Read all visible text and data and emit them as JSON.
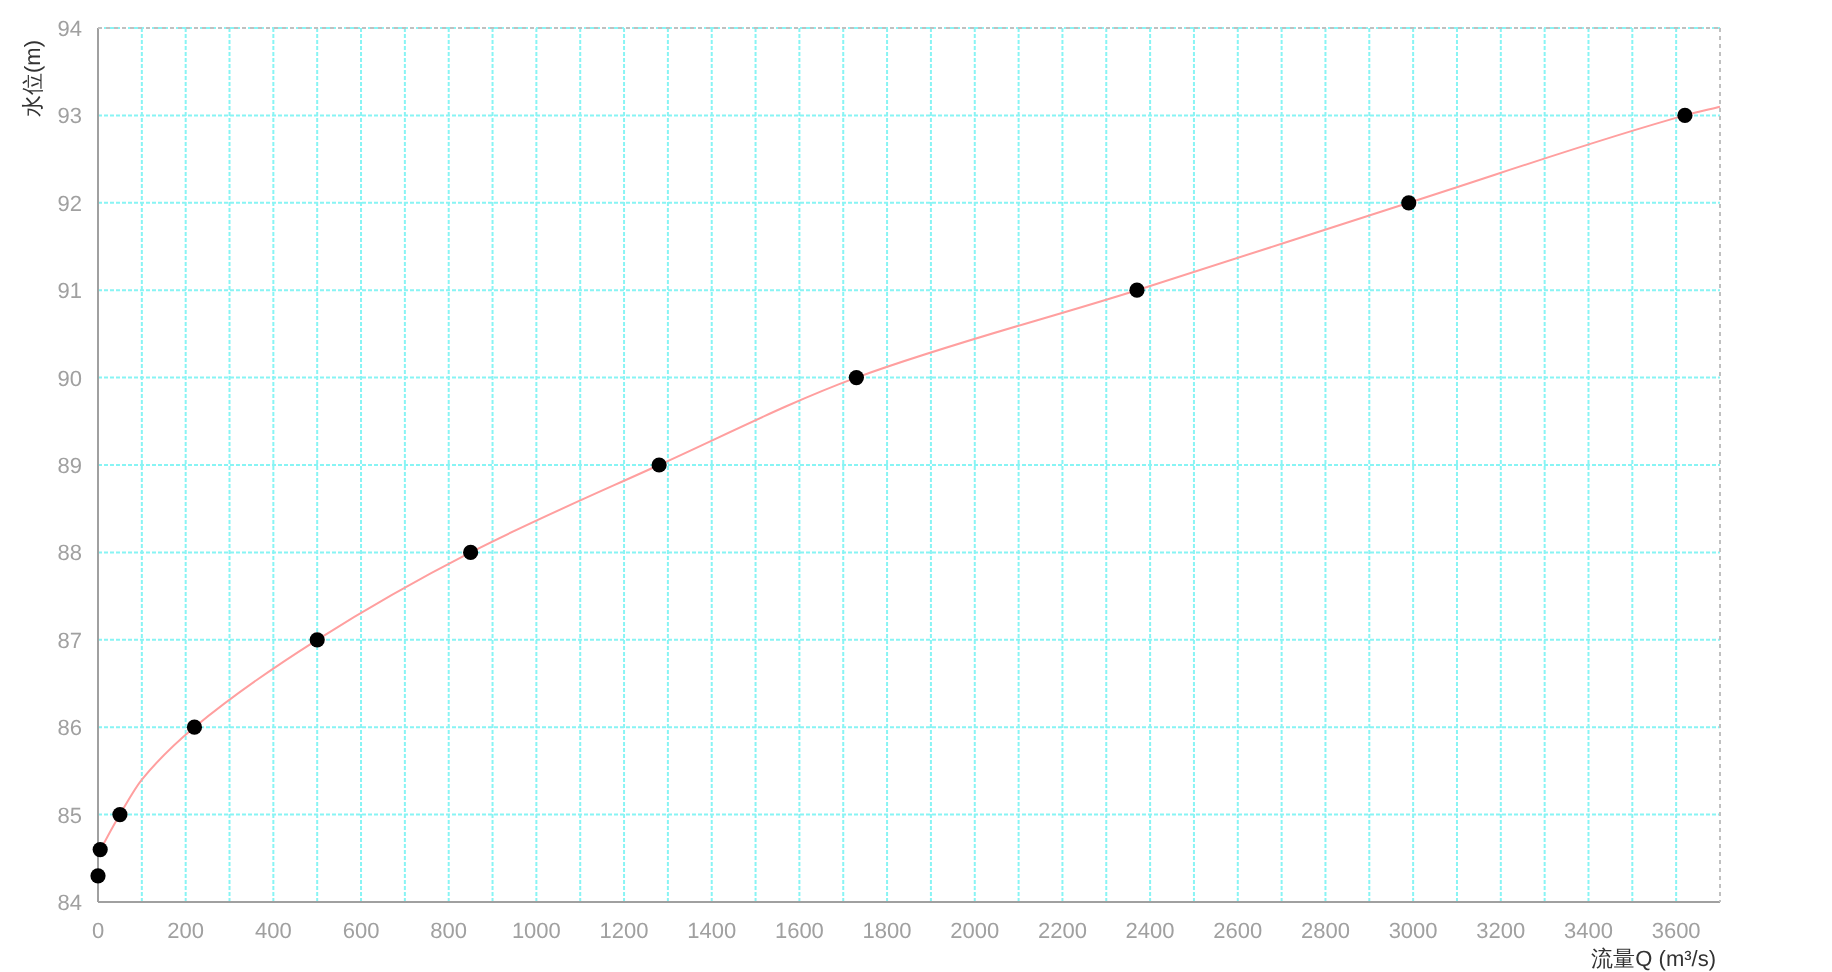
{
  "chart_data": {
    "type": "scatter",
    "xlabel": "流量Q (m³/s)",
    "ylabel": "水位(m)",
    "xlim": [
      0,
      3700
    ],
    "ylim": [
      84,
      94
    ],
    "xticks": [
      0,
      {
        "value": 100,
        "label": null
      },
      200,
      {
        "value": 300,
        "label": null
      },
      400,
      {
        "value": 500,
        "label": null
      },
      600,
      {
        "value": 700,
        "label": null
      },
      800,
      {
        "value": 900,
        "label": null
      },
      1000,
      {
        "value": 1100,
        "label": null
      },
      1200,
      {
        "value": 1300,
        "label": null
      },
      1400,
      {
        "value": 1500,
        "label": null
      },
      1600,
      {
        "value": 1700,
        "label": null
      },
      1800,
      {
        "value": 1900,
        "label": null
      },
      2000,
      {
        "value": 2100,
        "label": null
      },
      2200,
      {
        "value": 2300,
        "label": null
      },
      2400,
      {
        "value": 2500,
        "label": null
      },
      2600,
      {
        "value": 2700,
        "label": null
      },
      2800,
      {
        "value": 2900,
        "label": null
      },
      3000,
      {
        "value": 3100,
        "label": null
      },
      3200,
      {
        "value": 3300,
        "label": null
      },
      3400,
      {
        "value": 3500,
        "label": null
      },
      3600
    ],
    "yticks": [
      84,
      85,
      86,
      87,
      88,
      89,
      90,
      91,
      92,
      93,
      94
    ],
    "grid": true,
    "series": [
      {
        "type": "line",
        "color": "#ff9f9f",
        "marker": "none",
        "x": [
          0,
          50,
          100,
          220,
          500,
          850,
          1280,
          1730,
          2370,
          2990,
          3620,
          3700
        ],
        "values": [
          84.55,
          85,
          85.4,
          86,
          87,
          88,
          89,
          90,
          91,
          92,
          93,
          93.1
        ]
      },
      {
        "color": "#000000",
        "marker": "circle",
        "x": [
          0,
          5,
          50,
          220,
          500,
          850,
          1280,
          1730,
          2370,
          2990,
          3620
        ],
        "values": [
          84.3,
          84.6,
          85,
          86,
          87,
          88,
          89,
          90,
          91,
          92,
          93
        ]
      }
    ]
  }
}
